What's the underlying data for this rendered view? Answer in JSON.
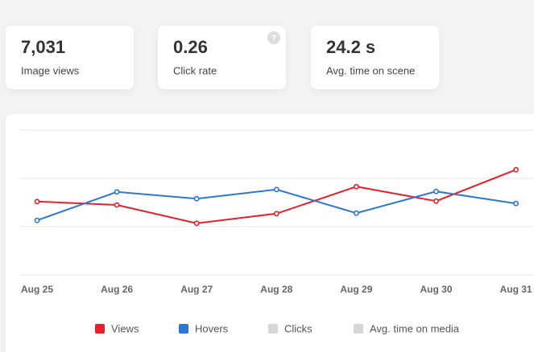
{
  "cards": [
    {
      "value": "7,031",
      "label": "Image views"
    },
    {
      "value": "0.26",
      "label": "Click rate",
      "help": "?"
    },
    {
      "value": "24.2 s",
      "label": "Avg. time on scene"
    }
  ],
  "chart_data": {
    "type": "line",
    "categories": [
      "Aug 25",
      "Aug 26",
      "Aug 27",
      "Aug 28",
      "Aug 29",
      "Aug 30",
      "Aug 31"
    ],
    "series": [
      {
        "name": "Views",
        "color": "#e8202e",
        "visible": true,
        "values": [
          1.52,
          1.45,
          1.07,
          1.27,
          1.83,
          1.53,
          2.18
        ]
      },
      {
        "name": "Hovers",
        "color": "#2a77d4",
        "visible": true,
        "values": [
          1.13,
          1.72,
          1.58,
          1.77,
          1.28,
          1.73,
          1.48
        ]
      },
      {
        "name": "Clicks",
        "color": "#d6d6d6",
        "visible": false,
        "values": [
          null,
          null,
          null,
          null,
          null,
          null,
          null
        ]
      },
      {
        "name": "Avg. time on media",
        "color": "#d6d6d6",
        "visible": false,
        "values": [
          null,
          null,
          null,
          null,
          null,
          null,
          null
        ]
      }
    ],
    "ylim": [
      0,
      3
    ],
    "yticks": [
      0,
      1,
      2,
      3
    ],
    "grid": true,
    "legend": "bottom"
  }
}
